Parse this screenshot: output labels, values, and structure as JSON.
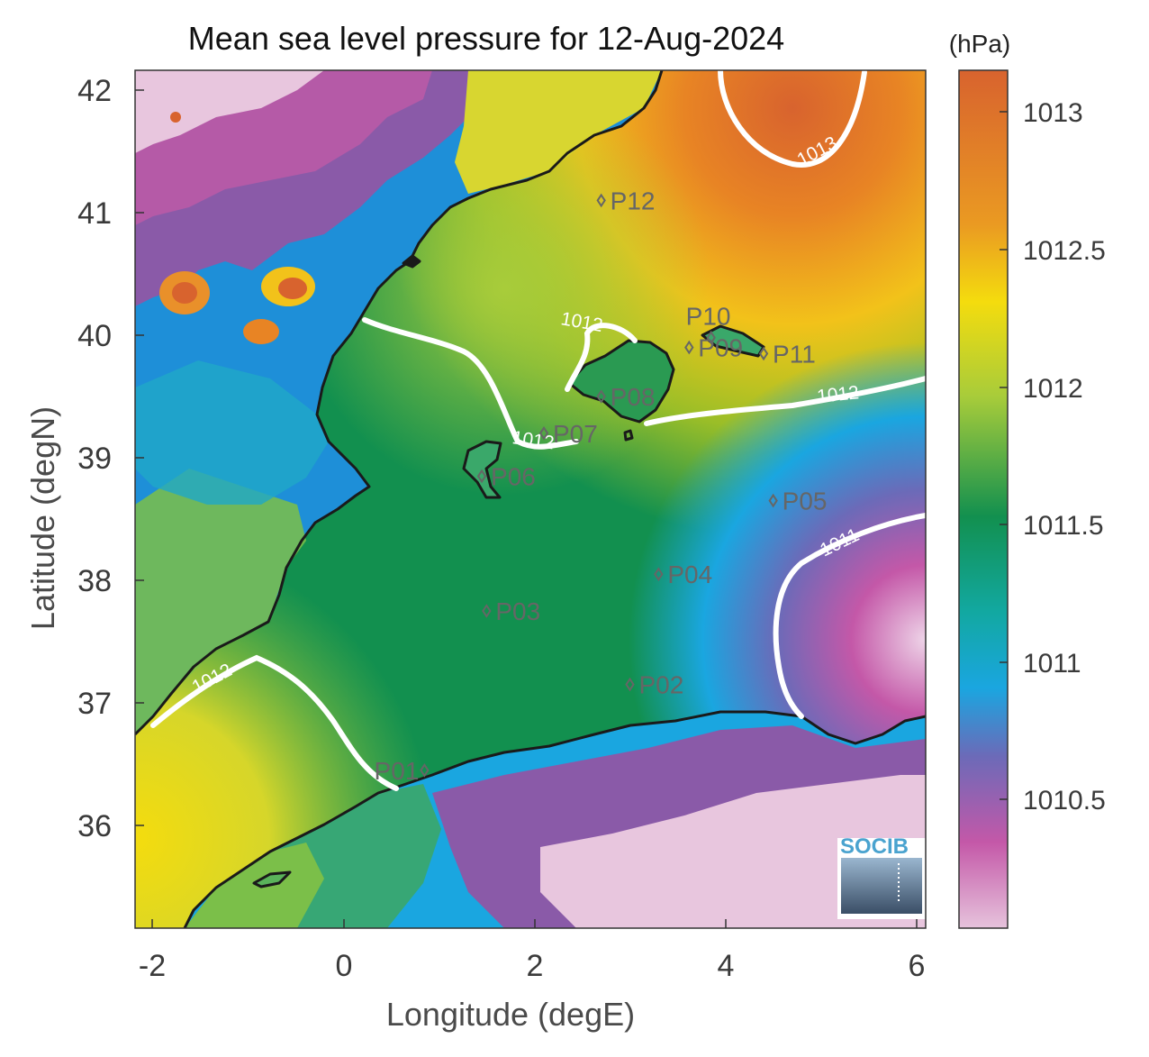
{
  "title": "Mean sea level pressure for 12-Aug-2024",
  "unit_label": "(hPa)",
  "x_axis": {
    "label": "Longitude (degE)",
    "ticks": [
      "-2",
      "0",
      "2",
      "4",
      "6"
    ]
  },
  "y_axis": {
    "label": "Latitude (degN)",
    "ticks": [
      "42",
      "41",
      "40",
      "39",
      "38",
      "37",
      "36"
    ]
  },
  "colorbar": {
    "ticks": [
      "1013",
      "1012.5",
      "1012",
      "1011.5",
      "1011",
      "1010.5"
    ]
  },
  "contours": [
    {
      "label": "1013"
    },
    {
      "label": "1012"
    },
    {
      "label": "1012"
    },
    {
      "label": "1012"
    },
    {
      "label": "1012"
    },
    {
      "label": "1011"
    }
  ],
  "stations": [
    {
      "label": "P01",
      "lon": 0.85,
      "lat": 36.45
    },
    {
      "label": "P02",
      "lon": 3.0,
      "lat": 37.15
    },
    {
      "label": "P03",
      "lon": 1.5,
      "lat": 37.75
    },
    {
      "label": "P04",
      "lon": 3.3,
      "lat": 38.05
    },
    {
      "label": "P05",
      "lon": 4.5,
      "lat": 38.65
    },
    {
      "label": "P06",
      "lon": 1.45,
      "lat": 38.85
    },
    {
      "label": "P07",
      "lon": 2.1,
      "lat": 39.2
    },
    {
      "label": "P08",
      "lon": 2.7,
      "lat": 39.5
    },
    {
      "label": "P09",
      "lon": 3.62,
      "lat": 39.9
    },
    {
      "label": "P10",
      "lon": 3.85,
      "lat": 39.98
    },
    {
      "label": "P11",
      "lon": 4.4,
      "lat": 39.85
    },
    {
      "label": "P12",
      "lon": 2.7,
      "lat": 41.1
    }
  ],
  "logo": {
    "text": "SOCIB"
  },
  "colors": {
    "high": "#d8632e",
    "mid": "#12904f",
    "low": "#e6c3dc",
    "coastline": "#1a1a1a",
    "contour": "#ffffff"
  }
}
